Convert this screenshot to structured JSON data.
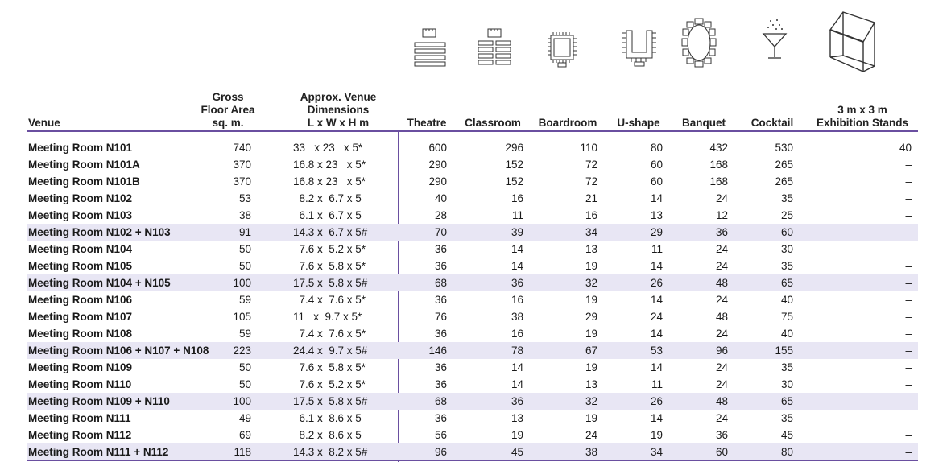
{
  "headers": {
    "venue": "Venue",
    "gross_floor_area": [
      "Gross",
      "Floor Area",
      "sq. m."
    ],
    "dimensions": [
      "Approx. Venue",
      "Dimensions",
      "L x W x H m"
    ],
    "theatre": "Theatre",
    "classroom": "Classroom",
    "boardroom": "Boardroom",
    "u_shape": "U-shape",
    "banquet": "Banquet",
    "cocktail": "Cocktail",
    "exhibition": [
      "3 m x 3 m",
      "Exhibition Stands"
    ]
  },
  "icons": [
    "theatre-layout-icon",
    "classroom-layout-icon",
    "boardroom-layout-icon",
    "u-shape-layout-icon",
    "banquet-layout-icon",
    "cocktail-glass-icon",
    "exhibition-stand-icon"
  ],
  "colors": {
    "accent": "#6a4fa0",
    "highlight_row": "#e8e6f4"
  },
  "rows": [
    {
      "venue": "Meeting Room N101",
      "area": "740",
      "dim": "33   x 23   x 5*",
      "theatre": "600",
      "classroom": "296",
      "boardroom": "110",
      "ushape": "80",
      "banquet": "432",
      "cocktail": "530",
      "exhibition": "40",
      "hl": false
    },
    {
      "venue": "Meeting Room N101A",
      "area": "370",
      "dim": "16.8 x 23   x 5*",
      "theatre": "290",
      "classroom": "152",
      "boardroom": "72",
      "ushape": "60",
      "banquet": "168",
      "cocktail": "265",
      "exhibition": "–",
      "hl": false
    },
    {
      "venue": "Meeting Room N101B",
      "area": "370",
      "dim": "16.8 x 23   x 5*",
      "theatre": "290",
      "classroom": "152",
      "boardroom": "72",
      "ushape": "60",
      "banquet": "168",
      "cocktail": "265",
      "exhibition": "–",
      "hl": false
    },
    {
      "venue": "Meeting Room N102",
      "area": "53",
      "dim": "  8.2 x  6.7 x 5",
      "theatre": "40",
      "classroom": "16",
      "boardroom": "21",
      "ushape": "14",
      "banquet": "24",
      "cocktail": "35",
      "exhibition": "–",
      "hl": false
    },
    {
      "venue": "Meeting Room N103",
      "area": "38",
      "dim": "  6.1 x  6.7 x 5",
      "theatre": "28",
      "classroom": "11",
      "boardroom": "16",
      "ushape": "13",
      "banquet": "12",
      "cocktail": "25",
      "exhibition": "–",
      "hl": false
    },
    {
      "venue": "Meeting Room N102 + N103",
      "area": "91",
      "dim": "14.3 x  6.7 x 5#",
      "theatre": "70",
      "classroom": "39",
      "boardroom": "34",
      "ushape": "29",
      "banquet": "36",
      "cocktail": "60",
      "exhibition": "–",
      "hl": true
    },
    {
      "venue": "Meeting Room N104",
      "area": "50",
      "dim": "  7.6 x  5.2 x 5*",
      "theatre": "36",
      "classroom": "14",
      "boardroom": "13",
      "ushape": "11",
      "banquet": "24",
      "cocktail": "30",
      "exhibition": "–",
      "hl": false
    },
    {
      "venue": "Meeting Room N105",
      "area": "50",
      "dim": "  7.6 x  5.8 x 5*",
      "theatre": "36",
      "classroom": "14",
      "boardroom": "19",
      "ushape": "14",
      "banquet": "24",
      "cocktail": "35",
      "exhibition": "–",
      "hl": false
    },
    {
      "venue": "Meeting Room N104 + N105",
      "area": "100",
      "dim": "17.5 x  5.8 x 5#",
      "theatre": "68",
      "classroom": "36",
      "boardroom": "32",
      "ushape": "26",
      "banquet": "48",
      "cocktail": "65",
      "exhibition": "–",
      "hl": true
    },
    {
      "venue": "Meeting Room N106",
      "area": "59",
      "dim": "  7.4 x  7.6 x 5*",
      "theatre": "36",
      "classroom": "16",
      "boardroom": "19",
      "ushape": "14",
      "banquet": "24",
      "cocktail": "40",
      "exhibition": "–",
      "hl": false
    },
    {
      "venue": "Meeting Room N107",
      "area": "105",
      "dim": "11   x  9.7 x 5*",
      "theatre": "76",
      "classroom": "38",
      "boardroom": "29",
      "ushape": "24",
      "banquet": "48",
      "cocktail": "75",
      "exhibition": "–",
      "hl": false
    },
    {
      "venue": "Meeting Room N108",
      "area": "59",
      "dim": "  7.4 x  7.6 x 5*",
      "theatre": "36",
      "classroom": "16",
      "boardroom": "19",
      "ushape": "14",
      "banquet": "24",
      "cocktail": "40",
      "exhibition": "–",
      "hl": false
    },
    {
      "venue": "Meeting Room N106 + N107 + N108",
      "area": "223",
      "dim": "24.4 x  9.7 x 5#",
      "theatre": "146",
      "classroom": "78",
      "boardroom": "67",
      "ushape": "53",
      "banquet": "96",
      "cocktail": "155",
      "exhibition": "–",
      "hl": true
    },
    {
      "venue": "Meeting Room N109",
      "area": "50",
      "dim": "  7.6 x  5.8 x 5*",
      "theatre": "36",
      "classroom": "14",
      "boardroom": "19",
      "ushape": "14",
      "banquet": "24",
      "cocktail": "35",
      "exhibition": "–",
      "hl": false
    },
    {
      "venue": "Meeting Room N110",
      "area": "50",
      "dim": "  7.6 x  5.2 x 5*",
      "theatre": "36",
      "classroom": "14",
      "boardroom": "13",
      "ushape": "11",
      "banquet": "24",
      "cocktail": "30",
      "exhibition": "–",
      "hl": false
    },
    {
      "venue": "Meeting Room N109 + N110",
      "area": "100",
      "dim": "17.5 x  5.8 x 5#",
      "theatre": "68",
      "classroom": "36",
      "boardroom": "32",
      "ushape": "26",
      "banquet": "48",
      "cocktail": "65",
      "exhibition": "–",
      "hl": true
    },
    {
      "venue": "Meeting Room N111",
      "area": "49",
      "dim": "  6.1 x  8.6 x 5",
      "theatre": "36",
      "classroom": "13",
      "boardroom": "19",
      "ushape": "14",
      "banquet": "24",
      "cocktail": "35",
      "exhibition": "–",
      "hl": false
    },
    {
      "venue": "Meeting Room N112",
      "area": "69",
      "dim": "  8.2 x  8.6 x 5",
      "theatre": "56",
      "classroom": "19",
      "boardroom": "24",
      "ushape": "19",
      "banquet": "36",
      "cocktail": "45",
      "exhibition": "–",
      "hl": false
    },
    {
      "venue": "Meeting Room N111 + N112",
      "area": "118",
      "dim": "14.3 x  8.2 x 5#",
      "theatre": "96",
      "classroom": "45",
      "boardroom": "38",
      "ushape": "34",
      "banquet": "60",
      "cocktail": "80",
      "exhibition": "–",
      "hl": true
    }
  ]
}
